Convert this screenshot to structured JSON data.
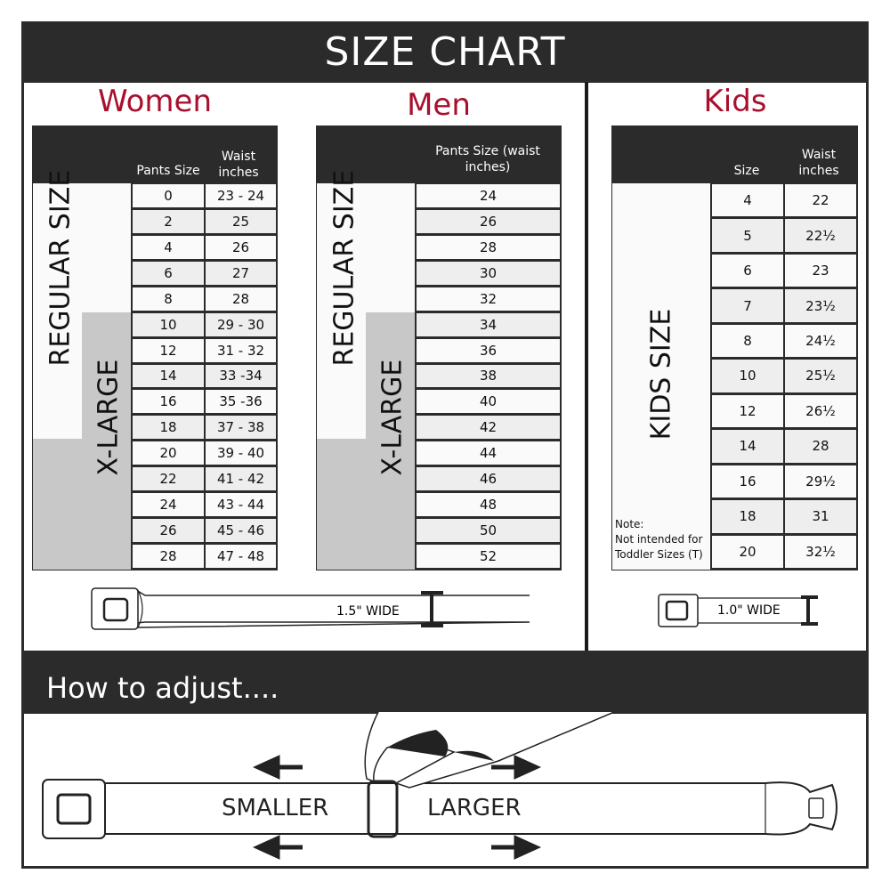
{
  "title": "SIZE CHART",
  "women": {
    "heading": "Women",
    "col1": "Pants Size",
    "col2": "Waist inches",
    "regular_label": "REGULAR SIZE",
    "xlarge_label": "X-LARGE",
    "rows": [
      [
        "0",
        "23 - 24"
      ],
      [
        "2",
        "25"
      ],
      [
        "4",
        "26"
      ],
      [
        "6",
        "27"
      ],
      [
        "8",
        "28"
      ],
      [
        "10",
        "29 - 30"
      ],
      [
        "12",
        "31 - 32"
      ],
      [
        "14",
        "33 -34"
      ],
      [
        "16",
        "35 -36"
      ],
      [
        "18",
        "37 - 38"
      ],
      [
        "20",
        "39 - 40"
      ],
      [
        "22",
        "41 - 42"
      ],
      [
        "24",
        "43 - 44"
      ],
      [
        "26",
        "45 - 46"
      ],
      [
        "28",
        "47 - 48"
      ]
    ],
    "belt_width": "1.5\" WIDE"
  },
  "men": {
    "heading": "Men",
    "col1": "Pants Size (waist inches)",
    "regular_label": "REGULAR SIZE",
    "xlarge_label": "X-LARGE",
    "rows": [
      "24",
      "26",
      "28",
      "30",
      "32",
      "34",
      "36",
      "38",
      "40",
      "42",
      "44",
      "46",
      "48",
      "50",
      "52"
    ]
  },
  "kids": {
    "heading": "Kids",
    "col1": "Size",
    "col2": "Waist inches",
    "label": "KIDS SIZE",
    "note_title": "Note:",
    "note_text": "Not intended for Toddler Sizes (T)",
    "rows": [
      [
        "4",
        "22"
      ],
      [
        "5",
        "22½"
      ],
      [
        "6",
        "23"
      ],
      [
        "7",
        "23½"
      ],
      [
        "8",
        "24½"
      ],
      [
        "10",
        "25½"
      ],
      [
        "12",
        "26½"
      ],
      [
        "14",
        "28"
      ],
      [
        "16",
        "29½"
      ],
      [
        "18",
        "31"
      ],
      [
        "20",
        "32½"
      ]
    ],
    "belt_width": "1.0\" WIDE"
  },
  "adjust": {
    "heading": "How to adjust....",
    "smaller": "SMALLER",
    "larger": "LARGER"
  },
  "colors": {
    "accent": "#a8102e",
    "dark": "#2b2b2b",
    "grey": "#c8c8c8"
  }
}
